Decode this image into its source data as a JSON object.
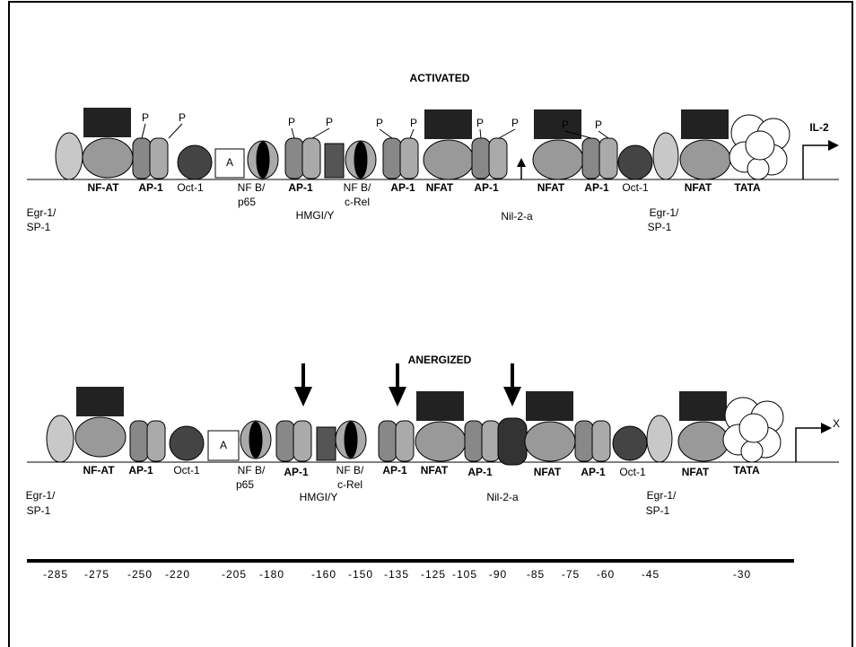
{
  "activated": {
    "title": "ACTIVATED",
    "gene": "IL-2",
    "box_label": [
      "A"
    ],
    "labels": [
      "NF-AT",
      "AP-1",
      "Oct-1",
      "NF B/",
      "p65",
      "AP-1",
      "NF B/",
      "c-Rel",
      "AP-1",
      "NFAT",
      "AP-1",
      "NFAT",
      "AP-1",
      "Oct-1",
      "NFAT",
      "TATA",
      "Egr-1/",
      "SP-1",
      "HMGI/Y",
      "Nil-2-a",
      "Egr-1/",
      "SP-1"
    ],
    "phospho": [
      "P",
      "P",
      "P",
      "P",
      "P",
      "P",
      "P",
      "P",
      "P",
      "P"
    ]
  },
  "anergized": {
    "title": "ANERGIZED",
    "gene": "X",
    "box_label": [
      "A"
    ],
    "labels": [
      "NF-AT",
      "AP-1",
      "Oct-1",
      "NF B/",
      "p65",
      "AP-1",
      "NF B/",
      "c-Rel",
      "AP-1",
      "NFAT",
      "AP-1",
      "NFAT",
      "AP-1",
      "Oct-1",
      "NFAT",
      "TATA",
      "Egr-1/",
      "SP-1",
      "HMGI/Y",
      "Nil-2-a",
      "Egr-1/",
      "SP-1"
    ]
  },
  "scale": [
    "-285",
    "-275",
    "-250",
    "-220",
    "-205",
    "-180",
    "-160",
    "-150",
    "-135",
    "-125",
    "-105",
    "-90",
    "-85",
    "-75",
    "-60",
    "-45",
    "-30"
  ]
}
